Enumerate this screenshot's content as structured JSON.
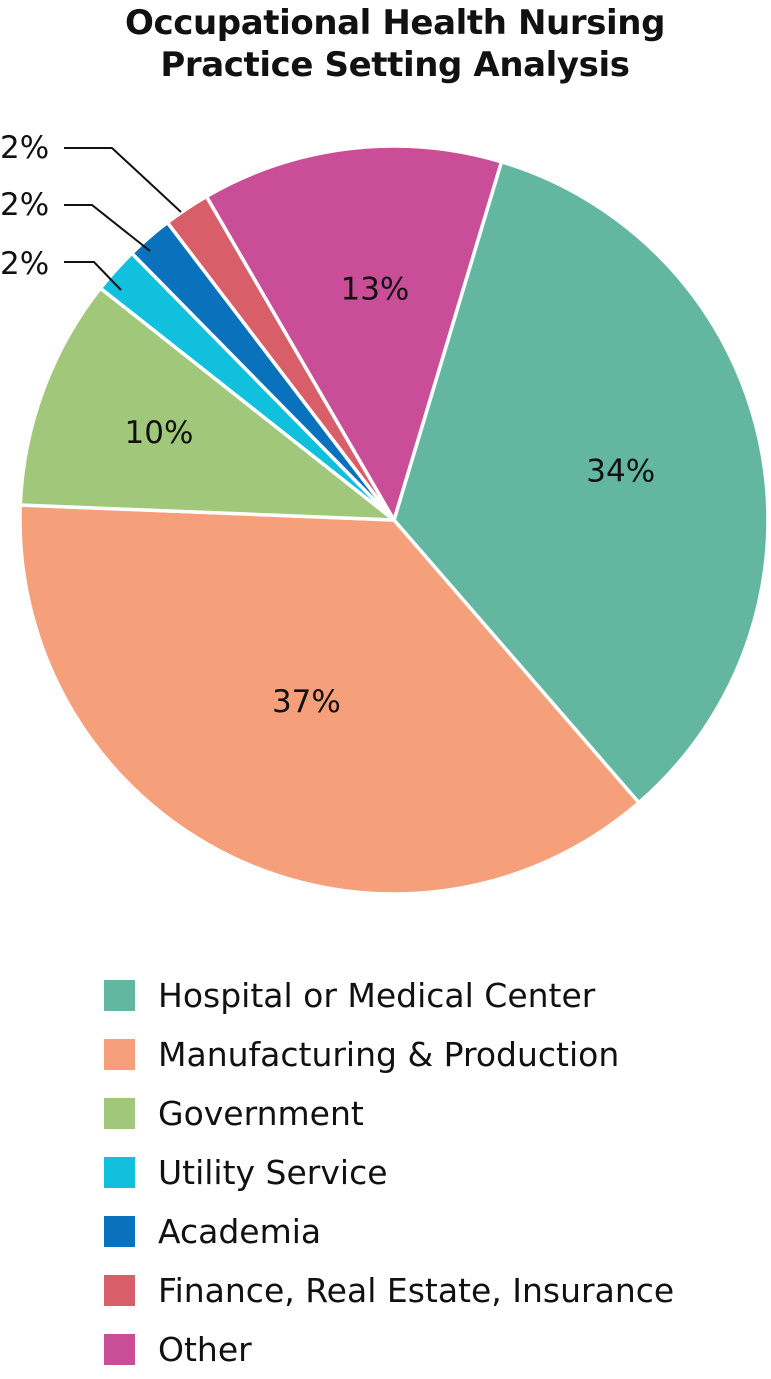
{
  "chart_data": {
    "type": "pie",
    "title": "Occupational Health Nursing Practice Setting Analysis",
    "title_lines": [
      "Occupational Health Nursing",
      "Practice Setting Analysis"
    ],
    "slices": [
      {
        "label": "Hospital or Medical Center",
        "value": 34,
        "display": "34%",
        "color": "#63b7a0"
      },
      {
        "label": "Manufacturing & Production",
        "value": 37,
        "display": "37%",
        "color": "#f6a07b"
      },
      {
        "label": "Government",
        "value": 10,
        "display": "10%",
        "color": "#a0c77a"
      },
      {
        "label": "Utility Service",
        "value": 2,
        "display": "2%",
        "color": "#11c0dd"
      },
      {
        "label": "Academia",
        "value": 2,
        "display": "2%",
        "color": "#0a72bd"
      },
      {
        "label": "Finance, Real Estate, Insurance",
        "value": 2,
        "display": "2%",
        "color": "#d85f6a"
      },
      {
        "label": "Other",
        "value": 13,
        "display": "13%",
        "color": "#ca4e97"
      }
    ],
    "legend_position": "bottom"
  }
}
